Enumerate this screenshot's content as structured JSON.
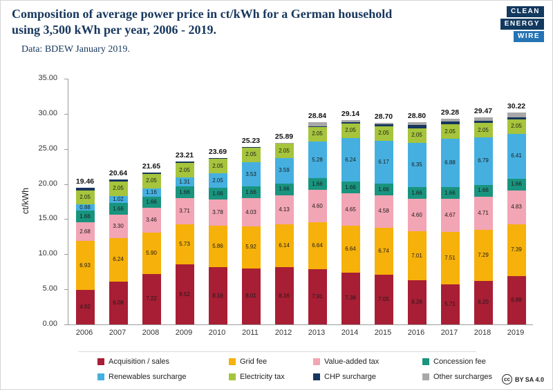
{
  "header": {
    "title": "Composition of average power price in ct/kWh for a German household\nusing 3,500 kWh per year, 2006 - 2019.",
    "subtitle": "Data: BDEW January 2019.",
    "logo_lines": [
      "CLEAN",
      "ENERGY",
      "WIRE"
    ]
  },
  "footer": {
    "cc_symbol": "cc",
    "license": "BY SA 4.0"
  },
  "chart_data": {
    "type": "bar",
    "stacked": true,
    "title": "Composition of average power price in ct/kWh for a German household using 3,500 kWh per year, 2006 - 2019",
    "source": "Data: BDEW January 2019.",
    "ylabel": "ct/kWh",
    "ylim": [
      0,
      35
    ],
    "ytick_step": 5,
    "grid": false,
    "legend_position": "bottom",
    "label_min_value": 0.8,
    "categories": [
      "2006",
      "2007",
      "2008",
      "2009",
      "2010",
      "2011",
      "2012",
      "2013",
      "2014",
      "2015",
      "2016",
      "2017",
      "2018",
      "2019"
    ],
    "totals": [
      19.46,
      20.64,
      21.65,
      23.21,
      23.69,
      25.23,
      25.89,
      28.84,
      29.14,
      28.7,
      28.8,
      29.28,
      29.47,
      30.22
    ],
    "series": [
      {
        "name": "Acquisition / sales",
        "color": "#a81e34",
        "values": [
          4.92,
          6.08,
          7.22,
          8.52,
          8.16,
          8.01,
          8.16,
          7.91,
          7.38,
          7.05,
          6.26,
          5.71,
          6.2,
          6.88
        ]
      },
      {
        "name": "Grid fee",
        "color": "#f6b10a",
        "values": [
          6.93,
          6.24,
          5.9,
          5.73,
          5.86,
          5.92,
          6.14,
          6.64,
          6.64,
          6.74,
          7.01,
          7.51,
          7.29,
          7.39
        ]
      },
      {
        "name": "Value-added tax",
        "color": "#f2a5b4",
        "values": [
          2.68,
          3.3,
          3.46,
          3.71,
          3.78,
          4.03,
          4.13,
          4.6,
          4.65,
          4.58,
          4.6,
          4.67,
          4.71,
          4.83
        ]
      },
      {
        "name": "Concession fee",
        "color": "#19947e",
        "values": [
          1.66,
          1.66,
          1.66,
          1.66,
          1.66,
          1.66,
          1.66,
          1.66,
          1.66,
          1.66,
          1.66,
          1.66,
          1.66,
          1.66
        ]
      },
      {
        "name": "Renewables surcharge",
        "color": "#45b0e0",
        "values": [
          0.88,
          1.02,
          1.16,
          1.31,
          2.05,
          3.53,
          3.59,
          5.28,
          6.24,
          6.17,
          6.35,
          6.88,
          6.79,
          6.41
        ]
      },
      {
        "name": "Electricity tax",
        "color": "#a6c43c",
        "values": [
          2.05,
          2.05,
          2.05,
          2.05,
          2.05,
          2.05,
          2.05,
          2.05,
          2.05,
          2.05,
          2.05,
          2.05,
          2.05,
          2.05
        ]
      },
      {
        "name": "CHP surcharge",
        "color": "#17365d",
        "values": [
          0.31,
          0.29,
          0.19,
          0.23,
          0.13,
          0.03,
          0.0,
          0.13,
          0.18,
          0.25,
          0.44,
          0.44,
          0.35,
          0.28
        ]
      },
      {
        "name": "Other surcharges",
        "color": "#a8a8a8",
        "values": [
          0.03,
          0.0,
          0.01,
          0.0,
          0.0,
          0.0,
          0.16,
          0.57,
          0.34,
          0.2,
          0.43,
          0.36,
          0.42,
          0.72
        ]
      }
    ]
  }
}
